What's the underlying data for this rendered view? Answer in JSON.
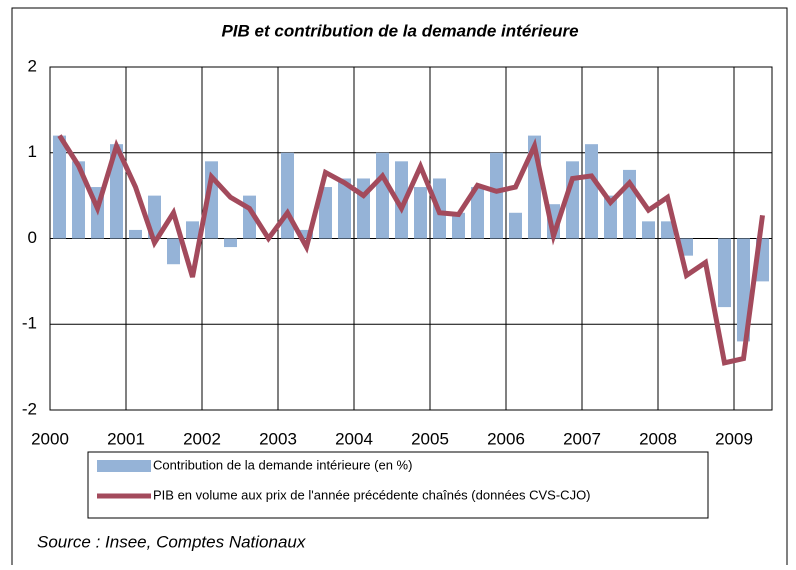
{
  "chart_data": {
    "type": "combo",
    "title": "PIB et contribution de la demande intérieure",
    "source": "Source : Insee, Comptes Nationaux",
    "categories": [
      "2000",
      null,
      null,
      null,
      "2001",
      null,
      null,
      null,
      "2002",
      null,
      null,
      null,
      "2003",
      null,
      null,
      null,
      "2004",
      null,
      null,
      null,
      "2005",
      null,
      null,
      null,
      "2006",
      null,
      null,
      null,
      "2007",
      null,
      null,
      null,
      "2008",
      null,
      null,
      null,
      "2009",
      null
    ],
    "series": [
      {
        "name": "Contribution de la demande intérieure (en %)",
        "type": "bar",
        "color": "#95b3d7",
        "values": [
          1.2,
          0.9,
          0.6,
          1.1,
          0.1,
          0.5,
          -0.3,
          0.2,
          0.9,
          -0.1,
          0.5,
          0.0,
          1.0,
          0.1,
          0.6,
          0.7,
          0.7,
          1.0,
          0.9,
          0.6,
          0.7,
          0.3,
          0.6,
          1.0,
          0.3,
          1.2,
          0.4,
          0.9,
          1.1,
          0.5,
          0.8,
          0.2,
          0.2,
          -0.2,
          0.0,
          -0.8,
          -1.2,
          -0.5
        ]
      },
      {
        "name": "PIB en volume aux prix de l'année précédente chaînés (données CVS-CJO)",
        "type": "line",
        "color": "#a34a5c",
        "values": [
          1.2,
          0.85,
          0.35,
          1.08,
          0.6,
          -0.05,
          0.3,
          -0.45,
          0.72,
          0.48,
          0.35,
          0.0,
          0.3,
          -0.1,
          0.77,
          0.65,
          0.5,
          0.73,
          0.35,
          0.84,
          0.3,
          0.28,
          0.62,
          0.55,
          0.6,
          1.08,
          0.03,
          0.7,
          0.73,
          0.42,
          0.65,
          0.33,
          0.48,
          -0.43,
          -0.28,
          -1.45,
          -1.4,
          0.27
        ]
      }
    ],
    "ylim": [
      -2,
      2
    ],
    "yticks": [
      -2,
      -1,
      0,
      1,
      2
    ],
    "grid": true
  }
}
